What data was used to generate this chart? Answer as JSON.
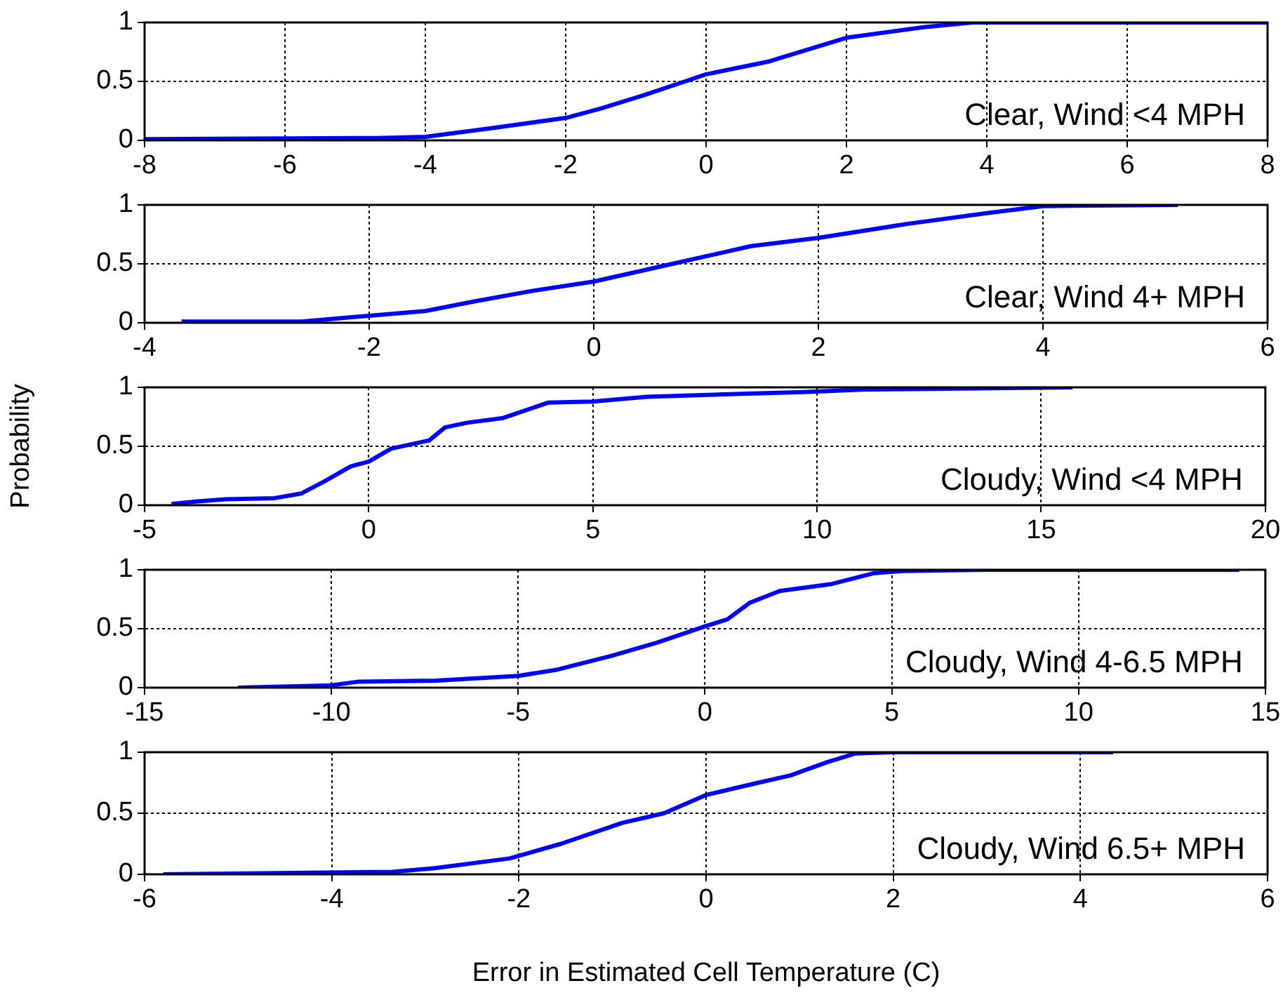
{
  "chart_data": [
    {
      "type": "line",
      "xlim": [
        -8,
        8
      ],
      "xticks": [
        -8,
        -6,
        -4,
        -2,
        0,
        2,
        4,
        6,
        8
      ],
      "ylim": [
        0,
        1
      ],
      "yticks": [
        0,
        0.5,
        1
      ],
      "grid": true,
      "marker": "none",
      "annotations": [
        "Clear, Wind <4 MPH"
      ],
      "series": [
        {
          "color": "#0000ff",
          "x": [
            -8,
            -4.7,
            -4,
            -3.1,
            -2,
            -1.5,
            -0.9,
            -0.3,
            0,
            0.9,
            2,
            3.1,
            3.8,
            8
          ],
          "values": [
            0.01,
            0.02,
            0.03,
            0.1,
            0.19,
            0.27,
            0.38,
            0.5,
            0.56,
            0.67,
            0.87,
            0.96,
            1,
            1
          ]
        }
      ]
    },
    {
      "type": "line",
      "xlim": [
        -4,
        6
      ],
      "xticks": [
        -4,
        -2,
        0,
        2,
        4,
        6
      ],
      "ylim": [
        0,
        1
      ],
      "yticks": [
        0,
        0.5,
        1
      ],
      "grid": true,
      "marker": "none",
      "annotations": [
        "Clear, Wind 4+ MPH"
      ],
      "series": [
        {
          "color": "#0000ff",
          "x": [
            -3.67,
            -2.6,
            -2,
            -1.5,
            -1.07,
            -0.55,
            0,
            0.7,
            1.4,
            2,
            2.8,
            3.5,
            4,
            5.2
          ],
          "values": [
            0.01,
            0.01,
            0.06,
            0.1,
            0.18,
            0.27,
            0.35,
            0.5,
            0.65,
            0.72,
            0.84,
            0.93,
            0.99,
            1
          ]
        }
      ]
    },
    {
      "type": "line",
      "xlim": [
        -5,
        20
      ],
      "xticks": [
        -5,
        0,
        5,
        10,
        15,
        20
      ],
      "ylim": [
        0,
        1
      ],
      "yticks": [
        0,
        0.5,
        1
      ],
      "grid": true,
      "marker": "none",
      "ylabel": "Probability",
      "annotations": [
        "Cloudy, Wind <4 MPH"
      ],
      "series": [
        {
          "color": "#0000ff",
          "x": [
            -4.4,
            -3.9,
            -3.2,
            -2.1,
            -1.5,
            -1,
            -0.4,
            0,
            0.5,
            1.35,
            1.7,
            2.2,
            3,
            4,
            5,
            6.2,
            7.9,
            9.7,
            11,
            13.2,
            15.7
          ],
          "values": [
            0.01,
            0.03,
            0.05,
            0.06,
            0.1,
            0.2,
            0.33,
            0.37,
            0.48,
            0.55,
            0.66,
            0.7,
            0.74,
            0.87,
            0.88,
            0.92,
            0.94,
            0.96,
            0.98,
            0.99,
            1
          ]
        }
      ]
    },
    {
      "type": "line",
      "xlim": [
        -15,
        15
      ],
      "xticks": [
        -15,
        -10,
        -5,
        0,
        5,
        10,
        15
      ],
      "ylim": [
        0,
        1
      ],
      "yticks": [
        0,
        0.5,
        1
      ],
      "grid": true,
      "marker": "none",
      "annotations": [
        "Cloudy, Wind 4-6.5 MPH"
      ],
      "series": [
        {
          "color": "#0000ff",
          "x": [
            -12.5,
            -10,
            -9.3,
            -7.2,
            -5,
            -4,
            -2.5,
            -1.3,
            0,
            0.6,
            1.2,
            2,
            3.4,
            4.5,
            5.3,
            7.5,
            14.3
          ],
          "values": [
            0,
            0.02,
            0.05,
            0.06,
            0.1,
            0.15,
            0.27,
            0.38,
            0.52,
            0.58,
            0.72,
            0.82,
            0.88,
            0.97,
            0.99,
            1,
            1
          ]
        }
      ]
    },
    {
      "type": "line",
      "xlim": [
        -6,
        6
      ],
      "xticks": [
        -6,
        -4,
        -2,
        0,
        2,
        4,
        6
      ],
      "ylim": [
        0,
        1
      ],
      "yticks": [
        0,
        0.5,
        1
      ],
      "grid": true,
      "marker": "none",
      "xlabel": "Error in Estimated Cell Temperature (C)",
      "annotations": [
        "Cloudy, Wind 6.5+ MPH"
      ],
      "series": [
        {
          "color": "#0000ff",
          "x": [
            -5.8,
            -3.35,
            -2.9,
            -2.1,
            -1.55,
            -0.9,
            -0.45,
            0,
            0.5,
            0.9,
            1.3,
            1.6,
            2,
            4.35
          ],
          "values": [
            0,
            0.02,
            0.05,
            0.13,
            0.25,
            0.42,
            0.5,
            0.65,
            0.74,
            0.81,
            0.92,
            0.99,
            1,
            1
          ]
        }
      ]
    }
  ]
}
